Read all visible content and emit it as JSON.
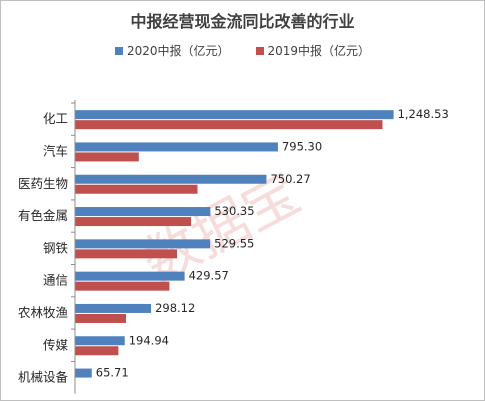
{
  "chart_data": {
    "type": "bar",
    "orientation": "horizontal",
    "title": "中报经营现金流同比改善的行业",
    "categories": [
      "化工",
      "汽车",
      "医药生物",
      "有色金属",
      "钢铁",
      "通信",
      "农林牧渔",
      "传媒",
      "机械设备"
    ],
    "series": [
      {
        "name": "2020中报（亿元）",
        "color": "#4f81bd",
        "values": [
          1248.53,
          795.3,
          750.27,
          530.35,
          529.55,
          429.57,
          298.12,
          194.94,
          65.71
        ],
        "labels": [
          "1,248.53",
          "795.30",
          "750.27",
          "530.35",
          "529.55",
          "429.57",
          "298.12",
          "194.94",
          "65.71"
        ]
      },
      {
        "name": "2019中报（亿元）",
        "color": "#c0504d",
        "values": [
          1205,
          250,
          480,
          455,
          400,
          370,
          200,
          170,
          null
        ]
      }
    ],
    "xlim": [
      0,
      1450
    ],
    "grid": false,
    "legend_position": "top"
  },
  "watermark": "数据宝"
}
